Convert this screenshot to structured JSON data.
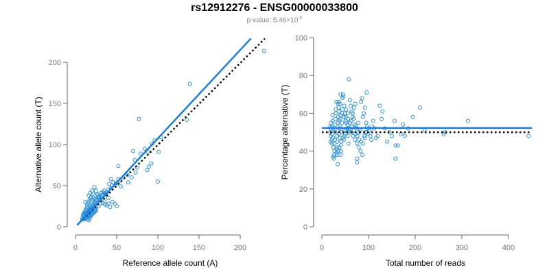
{
  "title": "rs12912276 - ENSG00000033800",
  "subtitle": {
    "prefix": "p-value: 5.46×10",
    "exponent": "-5"
  },
  "colors": {
    "points": "#2b8fd6",
    "fit_line": "#1a7de0",
    "reference_line": "#000000",
    "axis": "#666666",
    "tick_text": "#777777"
  },
  "chart_data": [
    {
      "type": "scatter",
      "xlabel": "Reference allele count (A)",
      "ylabel": "Alternative allele count (T)",
      "xlim": [
        -5,
        235
      ],
      "ylim": [
        -5,
        215
      ],
      "xticks": [
        0,
        50,
        100,
        150,
        200
      ],
      "yticks": [
        0,
        50,
        100,
        150,
        200
      ],
      "fit_line": [
        [
          2,
          2
        ],
        [
          213,
          229
        ]
      ],
      "reference_line": [
        [
          2,
          2
        ],
        [
          230,
          229
        ]
      ],
      "points": [
        [
          229,
          214
        ],
        [
          139,
          174
        ],
        [
          77,
          131
        ],
        [
          135,
          130
        ],
        [
          104,
          109
        ],
        [
          96,
          105
        ],
        [
          93,
          101
        ],
        [
          84,
          95
        ],
        [
          101,
          91
        ],
        [
          88,
          91
        ],
        [
          79,
          89
        ],
        [
          70,
          92
        ],
        [
          72,
          81
        ],
        [
          92,
          77
        ],
        [
          89,
          73
        ],
        [
          87,
          69
        ],
        [
          100,
          55
        ],
        [
          75,
          72
        ],
        [
          63,
          63
        ],
        [
          73,
          66
        ],
        [
          68,
          60
        ],
        [
          64,
          54
        ],
        [
          58,
          60
        ],
        [
          52,
          58
        ],
        [
          54,
          56
        ],
        [
          51,
          53
        ],
        [
          49,
          53
        ],
        [
          46,
          54
        ],
        [
          55,
          49
        ],
        [
          44,
          50
        ],
        [
          43,
          47
        ],
        [
          52,
          74
        ],
        [
          43,
          58
        ],
        [
          41,
          52
        ],
        [
          40,
          45
        ],
        [
          38,
          42
        ],
        [
          37,
          40
        ],
        [
          36,
          41
        ],
        [
          35,
          44
        ],
        [
          34,
          39
        ],
        [
          33,
          42
        ],
        [
          32,
          38
        ],
        [
          31,
          41
        ],
        [
          30,
          34
        ],
        [
          29,
          36
        ],
        [
          28,
          35
        ],
        [
          27,
          39
        ],
        [
          26,
          33
        ],
        [
          25,
          32
        ],
        [
          24,
          30
        ],
        [
          23,
          31
        ],
        [
          22,
          28
        ],
        [
          23,
          48
        ],
        [
          25,
          44
        ],
        [
          20,
          44
        ],
        [
          21,
          40
        ],
        [
          18,
          41
        ],
        [
          18,
          35
        ],
        [
          17,
          32
        ],
        [
          16,
          30
        ],
        [
          15,
          29
        ],
        [
          14,
          27
        ],
        [
          14,
          24
        ],
        [
          13,
          22
        ],
        [
          12,
          20
        ],
        [
          11,
          18
        ],
        [
          10,
          16
        ],
        [
          10,
          13
        ],
        [
          9,
          14
        ],
        [
          8,
          10
        ],
        [
          12,
          30
        ],
        [
          16,
          38
        ],
        [
          19,
          36
        ],
        [
          20,
          33
        ],
        [
          22,
          35
        ],
        [
          24,
          34
        ],
        [
          26,
          40
        ],
        [
          27,
          36
        ],
        [
          29,
          32
        ],
        [
          31,
          36
        ],
        [
          33,
          29
        ],
        [
          35,
          31
        ],
        [
          36,
          27
        ],
        [
          38,
          26
        ],
        [
          40,
          28
        ],
        [
          42,
          24
        ],
        [
          45,
          30
        ],
        [
          48,
          28
        ],
        [
          50,
          25
        ],
        [
          40,
          35
        ],
        [
          30,
          28
        ],
        [
          28,
          25
        ],
        [
          25,
          23
        ],
        [
          24,
          21
        ],
        [
          22,
          19
        ],
        [
          20,
          17
        ],
        [
          19,
          14
        ],
        [
          18,
          12
        ],
        [
          17,
          10
        ],
        [
          16,
          8
        ],
        [
          15,
          11
        ],
        [
          14,
          9
        ],
        [
          13,
          12
        ],
        [
          12,
          11
        ],
        [
          11,
          9
        ],
        [
          12,
          14
        ],
        [
          13,
          15
        ],
        [
          14,
          16
        ],
        [
          15,
          18
        ],
        [
          16,
          20
        ],
        [
          17,
          22
        ],
        [
          18,
          24
        ],
        [
          19,
          25
        ],
        [
          20,
          26
        ],
        [
          21,
          27
        ],
        [
          22,
          24
        ],
        [
          23,
          26
        ],
        [
          24,
          25
        ],
        [
          21,
          23
        ],
        [
          20,
          21
        ],
        [
          19,
          20
        ],
        [
          18,
          19
        ],
        [
          17,
          18
        ],
        [
          16,
          17
        ],
        [
          15,
          15
        ],
        [
          14,
          14
        ],
        [
          13,
          13
        ],
        [
          12,
          12
        ],
        [
          11,
          11
        ],
        [
          10,
          10
        ],
        [
          9,
          9
        ],
        [
          18,
          16
        ],
        [
          17,
          14
        ],
        [
          16,
          13
        ],
        [
          15,
          12
        ],
        [
          20,
          15
        ],
        [
          21,
          16
        ],
        [
          22,
          17
        ],
        [
          23,
          18
        ],
        [
          24,
          19
        ],
        [
          25,
          20
        ],
        [
          19,
          22
        ],
        [
          18,
          21
        ],
        [
          17,
          20
        ],
        [
          16,
          19
        ],
        [
          15,
          17
        ],
        [
          14,
          18
        ],
        [
          13,
          16
        ],
        [
          12,
          17
        ],
        [
          11,
          15
        ],
        [
          10,
          14
        ]
      ]
    },
    {
      "type": "scatter",
      "xlabel": "Total number of reads",
      "ylabel": "Percentage alternative (T)",
      "xlim": [
        -10,
        450
      ],
      "ylim": [
        -5,
        100
      ],
      "xticks": [
        0,
        100,
        200,
        300,
        400
      ],
      "yticks": [
        0,
        20,
        40,
        60,
        80,
        100
      ],
      "fit_line": [
        [
          0,
          52.2
        ],
        [
          450,
          52.2
        ]
      ],
      "reference_line": [
        [
          0,
          50
        ],
        [
          450,
          50
        ]
      ],
      "points": [
        [
          443,
          48
        ],
        [
          313,
          56
        ],
        [
          264,
          50
        ],
        [
          261,
          49
        ],
        [
          210,
          63
        ],
        [
          220,
          51
        ],
        [
          195,
          58
        ],
        [
          185,
          52
        ],
        [
          178,
          48
        ],
        [
          174,
          54
        ],
        [
          170,
          49
        ],
        [
          163,
          43
        ],
        [
          158,
          43
        ],
        [
          158,
          36
        ],
        [
          156,
          56
        ],
        [
          150,
          48
        ],
        [
          145,
          50
        ],
        [
          140,
          45
        ],
        [
          135,
          52
        ],
        [
          130,
          61
        ],
        [
          128,
          57
        ],
        [
          124,
          64
        ],
        [
          120,
          48
        ],
        [
          116,
          47
        ],
        [
          112,
          52
        ],
        [
          110,
          56
        ],
        [
          108,
          53
        ],
        [
          106,
          46
        ],
        [
          104,
          48
        ],
        [
          102,
          51
        ],
        [
          99,
          49
        ],
        [
          96,
          71
        ],
        [
          95,
          55
        ],
        [
          92,
          63
        ],
        [
          90,
          60
        ],
        [
          88,
          58
        ],
        [
          86,
          68
        ],
        [
          84,
          66
        ],
        [
          82,
          51
        ],
        [
          80,
          50
        ],
        [
          78,
          55
        ],
        [
          76,
          36
        ],
        [
          75,
          34
        ],
        [
          74,
          52
        ],
        [
          72,
          53
        ],
        [
          70,
          54
        ],
        [
          68,
          57
        ],
        [
          66,
          58
        ],
        [
          64,
          61
        ],
        [
          62,
          64
        ],
        [
          60,
          67
        ],
        [
          58,
          78
        ],
        [
          57,
          44
        ],
        [
          56,
          60
        ],
        [
          55,
          48
        ],
        [
          54,
          52
        ],
        [
          52,
          55
        ],
        [
          51,
          58
        ],
        [
          50,
          60
        ],
        [
          49,
          51
        ],
        [
          48,
          48
        ],
        [
          47,
          46
        ],
        [
          46,
          69
        ],
        [
          45,
          70
        ],
        [
          44,
          62
        ],
        [
          43,
          55
        ],
        [
          42,
          50
        ],
        [
          42,
          45
        ],
        [
          41,
          43
        ],
        [
          41,
          40
        ],
        [
          40,
          38
        ],
        [
          40,
          59
        ],
        [
          39,
          57
        ],
        [
          39,
          53
        ],
        [
          38,
          52
        ],
        [
          38,
          47
        ],
        [
          37,
          49
        ],
        [
          37,
          56
        ],
        [
          36,
          61
        ],
        [
          36,
          63
        ],
        [
          35,
          65
        ],
        [
          35,
          58
        ],
        [
          34,
          55
        ],
        [
          34,
          51
        ],
        [
          33,
          48
        ],
        [
          33,
          45
        ],
        [
          32,
          42
        ],
        [
          32,
          41
        ],
        [
          31,
          39
        ],
        [
          31,
          66
        ],
        [
          30,
          62
        ],
        [
          30,
          60
        ],
        [
          29,
          57
        ],
        [
          29,
          54
        ],
        [
          28,
          50
        ],
        [
          28,
          46
        ],
        [
          27,
          44
        ],
        [
          27,
          40
        ],
        [
          26,
          38
        ],
        [
          26,
          36
        ],
        [
          25,
          37
        ],
        [
          25,
          42
        ],
        [
          24,
          47
        ],
        [
          24,
          52
        ],
        [
          23,
          56
        ],
        [
          23,
          59
        ],
        [
          22,
          53
        ],
        [
          22,
          49
        ],
        [
          21,
          46
        ],
        [
          21,
          44
        ],
        [
          20,
          51
        ],
        [
          20,
          55
        ],
        [
          19,
          48
        ],
        [
          19,
          45
        ],
        [
          18,
          50
        ],
        [
          18,
          53
        ],
        [
          34,
          33
        ],
        [
          36,
          66
        ],
        [
          40,
          70
        ],
        [
          44,
          68
        ],
        [
          48,
          64
        ],
        [
          52,
          62
        ],
        [
          56,
          57
        ],
        [
          60,
          55
        ],
        [
          64,
          53
        ],
        [
          68,
          51
        ],
        [
          72,
          49
        ],
        [
          76,
          48
        ],
        [
          80,
          46
        ],
        [
          84,
          45
        ],
        [
          88,
          44
        ],
        [
          92,
          47
        ],
        [
          96,
          50
        ],
        [
          100,
          52
        ],
        [
          39,
          65
        ],
        [
          43,
          60
        ],
        [
          47,
          58
        ],
        [
          51,
          56
        ],
        [
          55,
          54
        ],
        [
          59,
          52
        ],
        [
          63,
          50
        ],
        [
          67,
          48
        ],
        [
          71,
          46
        ],
        [
          75,
          44
        ],
        [
          79,
          42
        ],
        [
          83,
          40
        ],
        [
          87,
          38
        ],
        [
          91,
          48
        ],
        [
          94,
          50
        ],
        [
          97,
          53
        ],
        [
          63,
          56
        ],
        [
          66,
          60
        ],
        [
          69,
          63
        ],
        [
          72,
          65
        ],
        [
          33,
          38
        ],
        [
          35,
          40
        ],
        [
          37,
          42
        ],
        [
          45,
          47
        ],
        [
          50,
          49
        ],
        [
          53,
          51
        ],
        [
          57,
          50
        ]
      ]
    }
  ]
}
